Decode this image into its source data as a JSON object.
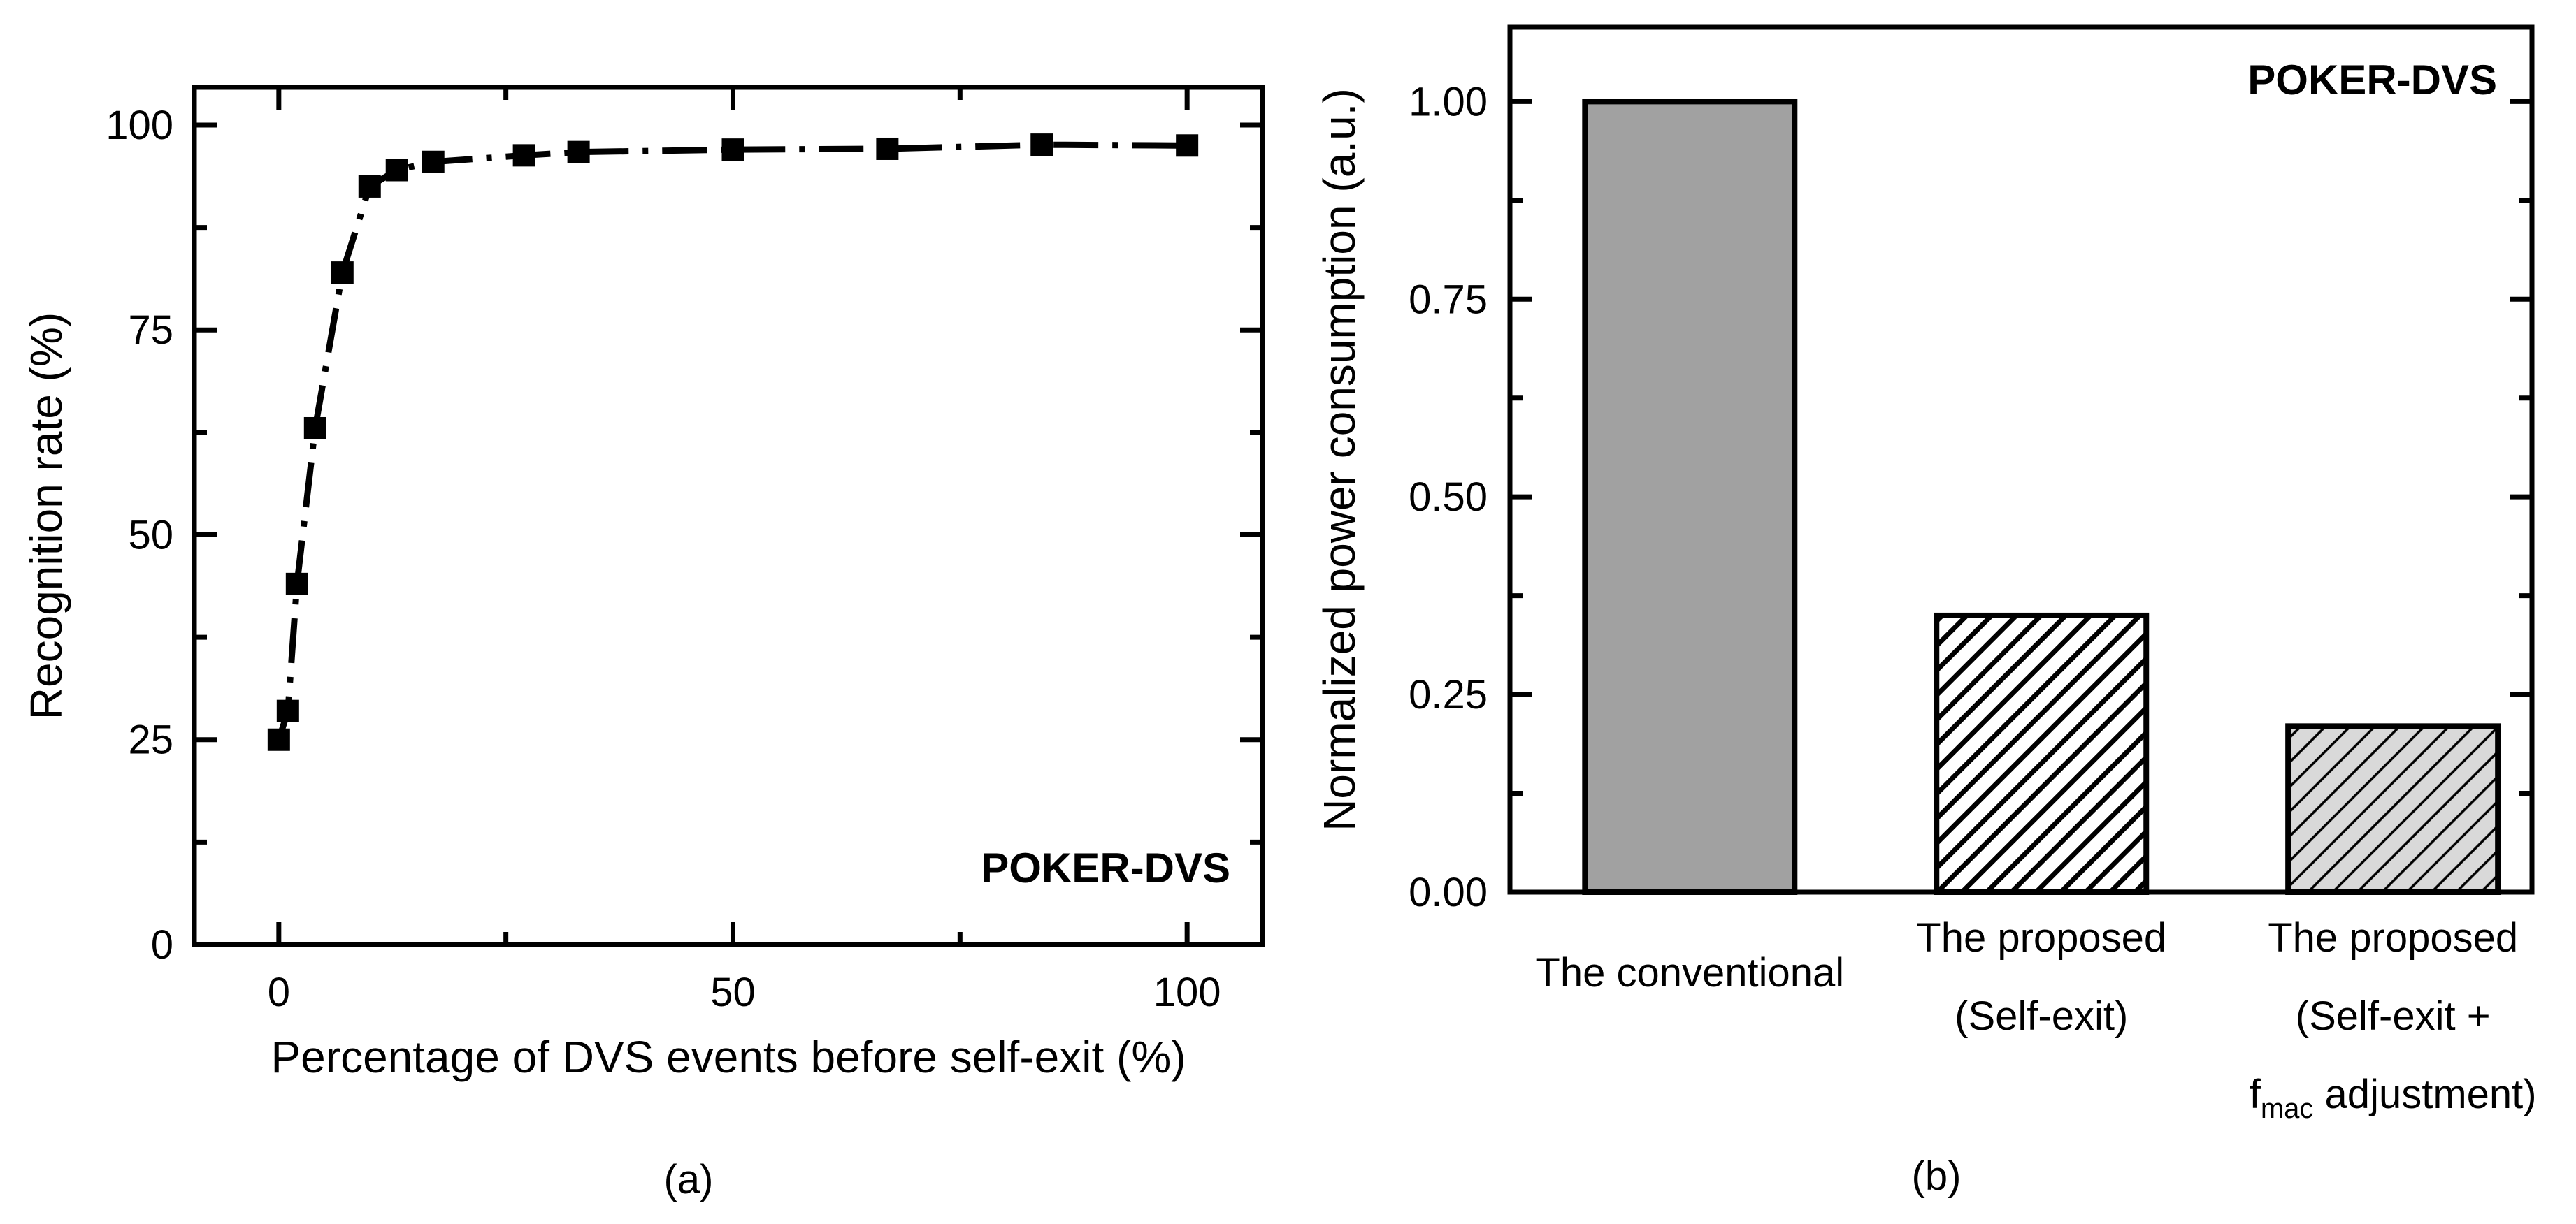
{
  "figure": {
    "background": "#ffffff",
    "caption_a": "(a)",
    "caption_b": "(b)",
    "ink_color": "#000000"
  },
  "chart_data": [
    {
      "type": "line",
      "panel": "a",
      "annotation": "POKER-DVS",
      "xlabel": "Percentage of DVS events before self-exit (%)",
      "ylabel": "Recognition rate (%)",
      "xlim": [
        -9.3,
        108.3
      ],
      "ylim": [
        0,
        104.6
      ],
      "xticks_major": [
        0,
        50,
        100
      ],
      "xtick_labels": [
        "0",
        "50",
        "100"
      ],
      "xticks_minor": [
        25,
        75
      ],
      "yticks_major": [
        0,
        25,
        50,
        75,
        100
      ],
      "ytick_labels": [
        "0",
        "25",
        "50",
        "75",
        "100"
      ],
      "yticks_minor": [
        12.5,
        37.5,
        62.5,
        87.5
      ],
      "grid": false,
      "marker": "square",
      "line_style": "dash-dot",
      "color": "#000000",
      "series": [
        {
          "name": "recognition-rate",
          "x": [
            0,
            1,
            2,
            4,
            7,
            10,
            13,
            17,
            27,
            33,
            50,
            67,
            84,
            100
          ],
          "y": [
            25,
            28.5,
            44,
            63,
            82,
            92.5,
            94.5,
            95.5,
            96.3,
            96.7,
            97,
            97.1,
            97.6,
            97.5
          ]
        }
      ]
    },
    {
      "type": "bar",
      "panel": "b",
      "annotation": "POKER-DVS",
      "ylabel": "Normalized power consumption (a.u.)",
      "ylim": [
        0,
        1.094
      ],
      "yticks_major": [
        0,
        0.25,
        0.5,
        0.75,
        1.0
      ],
      "ytick_labels": [
        "0.00",
        "0.25",
        "0.50",
        "0.75",
        "1.00"
      ],
      "yticks_minor": [
        0.125,
        0.375,
        0.625,
        0.875
      ],
      "grid": false,
      "bar_outline": "#000000",
      "categories": [
        {
          "lines": [
            "The conventional"
          ],
          "value": 1.0,
          "fill": "#a1a1a1",
          "hatch": "none"
        },
        {
          "lines": [
            "The proposed",
            "(Self-exit)"
          ],
          "value": 0.35,
          "fill": "#ffffff",
          "hatch": "thick"
        },
        {
          "lines": [
            "The proposed",
            "(Self-exit +",
            {
              "parts": [
                {
                  "t": "f"
                },
                {
                  "t": "mac",
                  "sub": true
                },
                {
                  "t": " adjustment)"
                }
              ]
            }
          ],
          "value": 0.21,
          "fill": "#d9d9d9",
          "hatch": "thin"
        }
      ]
    }
  ]
}
